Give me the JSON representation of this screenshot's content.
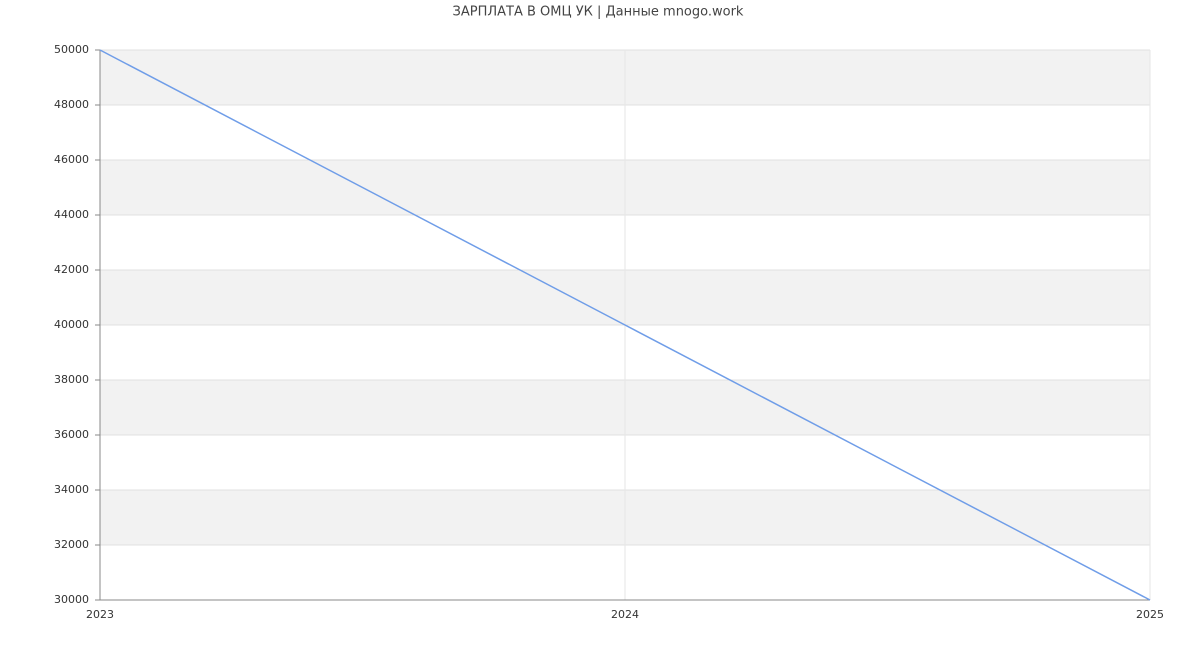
{
  "chart_data": {
    "type": "line",
    "title": "ЗАРПЛАТА В ОМЦ УК | Данные mnogo.work",
    "x": [
      2023,
      2024,
      2025
    ],
    "values": [
      50000,
      40000,
      30000
    ],
    "color": "#6f9de8",
    "xlim": [
      2023,
      2025
    ],
    "xticks": [
      2023,
      2024,
      2025
    ],
    "ylim": [
      30000,
      50000
    ],
    "yticks": [
      30000,
      32000,
      34000,
      36000,
      38000,
      40000,
      42000,
      44000,
      46000,
      48000,
      50000
    ],
    "grid": true
  }
}
